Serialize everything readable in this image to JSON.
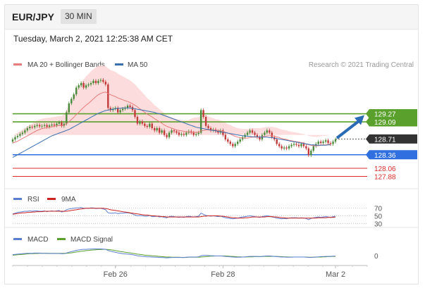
{
  "header": {
    "symbol": "EUR/JPY",
    "timeframe": "30 MIN"
  },
  "timestamp": "Tuesday, March 2, 2021 12:25:38 AM CET",
  "attribution": "Research © 2021 Trading Central",
  "colors": {
    "up_candle": "#4a8a3a",
    "down_candle": "#c23b3b",
    "ma20": "#e87c7c",
    "ma50": "#3a6fb0",
    "bollinger_fill": "#fbd6d6",
    "resistance": "#5aa02c",
    "support": "#2f6fe0",
    "lower_support": "#d92b2b",
    "current_price": "#333333",
    "arrow": "#2a6bb5",
    "rsi": "#5b7fd0",
    "rsi_ma": "#cc2222",
    "macd": "#5b7fd0",
    "macd_signal": "#5aa02c"
  },
  "chart_data": [
    {
      "type": "line",
      "panel": "price",
      "legend": [
        "MA 20 + Bollinger Bands",
        "MA 50"
      ],
      "ylim": [
        127.7,
        130.2
      ],
      "x_tick_labels": [
        "Feb 26",
        "Feb 28",
        "Mar 2"
      ],
      "levels": [
        {
          "label": "129.27",
          "value": 129.27,
          "kind": "resistance"
        },
        {
          "label": "129.09",
          "value": 129.09,
          "kind": "resistance"
        },
        {
          "label": "128.71",
          "value": 128.71,
          "kind": "current"
        },
        {
          "label": "128.36",
          "value": 128.36,
          "kind": "support"
        },
        {
          "label": "128.06",
          "value": 128.06,
          "kind": "lower"
        },
        {
          "label": "127.88",
          "value": 127.88,
          "kind": "lower"
        }
      ],
      "close": [
        128.7,
        128.75,
        128.78,
        128.82,
        128.85,
        128.9,
        128.95,
        128.98,
        128.97,
        129.0,
        129.02,
        128.99,
        129.0,
        129.02,
        128.98,
        129.01,
        129.03,
        129.01,
        129.05,
        129.08,
        129.0,
        129.05,
        129.3,
        129.5,
        129.6,
        129.7,
        129.85,
        129.9,
        129.95,
        129.85,
        129.9,
        129.92,
        129.95,
        130.0,
        129.95,
        130.0,
        130.02,
        129.98,
        129.92,
        129.4,
        129.35,
        129.38,
        129.4,
        129.3,
        129.35,
        129.38,
        129.4,
        129.45,
        129.42,
        129.35,
        129.2,
        129.05,
        129.1,
        129.05,
        129.0,
        128.98,
        129.05,
        128.95,
        128.9,
        128.95,
        128.85,
        128.9,
        128.8,
        128.75,
        128.85,
        128.9,
        128.88,
        128.85,
        128.8,
        128.82,
        128.8,
        128.85,
        128.88,
        128.85,
        128.8,
        128.82,
        128.85,
        129.35,
        129.2,
        129.0,
        128.95,
        128.9,
        128.92,
        128.88,
        128.85,
        128.9,
        128.8,
        128.7,
        128.65,
        128.6,
        128.55,
        128.6,
        128.65,
        128.7,
        128.75,
        128.8,
        128.85,
        128.9,
        128.85,
        128.8,
        128.75,
        128.7,
        128.8,
        128.85,
        128.9,
        128.85,
        128.75,
        128.7,
        128.6,
        128.55,
        128.5,
        128.52,
        128.5,
        128.55,
        128.58,
        128.6,
        128.58,
        128.55,
        128.6,
        128.55,
        128.5,
        128.35,
        128.45,
        128.55,
        128.6,
        128.65,
        128.62,
        128.65,
        128.68,
        128.62,
        128.6,
        128.65,
        128.7
      ],
      "ma20": [
        128.62,
        128.64,
        128.66,
        128.69,
        128.72,
        128.75,
        128.78,
        128.81,
        128.84,
        128.87,
        128.9,
        128.92,
        128.94,
        128.95,
        128.96,
        128.97,
        128.98,
        128.99,
        129.0,
        129.01,
        129.0,
        129.01,
        129.05,
        129.09,
        129.14,
        129.19,
        129.25,
        129.3,
        129.36,
        129.41,
        129.46,
        129.5,
        129.55,
        129.6,
        129.65,
        129.69,
        129.72,
        129.74,
        129.75,
        129.72,
        129.69,
        129.67,
        129.65,
        129.62,
        129.6,
        129.58,
        129.56,
        129.54,
        129.52,
        129.49,
        129.46,
        129.42,
        129.38,
        129.34,
        129.3,
        129.26,
        129.23,
        129.2,
        129.16,
        129.13,
        129.09,
        129.06,
        129.02,
        128.99,
        128.97,
        128.95,
        128.93,
        128.91,
        128.9,
        128.89,
        128.88,
        128.87,
        128.87,
        128.86,
        128.86,
        128.86,
        128.86,
        128.89,
        128.9,
        128.91,
        128.91,
        128.91,
        128.91,
        128.9,
        128.9,
        128.89,
        128.88,
        128.86,
        128.84,
        128.82,
        128.79,
        128.77,
        128.75,
        128.74,
        128.73,
        128.73,
        128.73,
        128.74,
        128.75,
        128.75,
        128.75,
        128.75,
        128.76,
        128.77,
        128.78,
        128.78,
        128.78,
        128.77,
        128.76,
        128.74,
        128.72,
        128.71,
        128.7,
        128.68,
        128.67,
        128.66,
        128.65,
        128.64,
        128.63,
        128.62,
        128.6,
        128.58,
        128.57,
        128.56,
        128.56,
        128.56,
        128.57,
        128.58,
        128.58,
        128.59,
        128.6
      ],
      "ma50": [
        128.3,
        128.33,
        128.36,
        128.39,
        128.42,
        128.45,
        128.48,
        128.51,
        128.54,
        128.57,
        128.6,
        128.63,
        128.66,
        128.69,
        128.72,
        128.75,
        128.78,
        128.8,
        128.82,
        128.84,
        128.86,
        128.88,
        128.9,
        128.92,
        128.95,
        128.98,
        129.01,
        129.04,
        129.07,
        129.1,
        129.13,
        129.16,
        129.19,
        129.22,
        129.25,
        129.28,
        129.3,
        129.32,
        129.34,
        129.35,
        129.36,
        129.37,
        129.38,
        129.39,
        129.39,
        129.4,
        129.4,
        129.4,
        129.4,
        129.39,
        129.38,
        129.37,
        129.36,
        129.35,
        129.34,
        129.33,
        129.32,
        129.31,
        129.3,
        129.28,
        129.27,
        129.25,
        129.23,
        129.21,
        129.19,
        129.17,
        129.15,
        129.13,
        129.11,
        129.09,
        129.07,
        129.05,
        129.03,
        129.01,
        128.99,
        128.97,
        128.96,
        128.95,
        128.94,
        128.93,
        128.92,
        128.91,
        128.9,
        128.89,
        128.88,
        128.87,
        128.86,
        128.85,
        128.84,
        128.83,
        128.82,
        128.81,
        128.8,
        128.79,
        128.78,
        128.78,
        128.77,
        128.77,
        128.76,
        128.76,
        128.76,
        128.75,
        128.75,
        128.75,
        128.75,
        128.74,
        128.74,
        128.73,
        128.72,
        128.71,
        128.7,
        128.69,
        128.68,
        128.67,
        128.66,
        128.65,
        128.64,
        128.63,
        128.62,
        128.61,
        128.6,
        128.59,
        128.58,
        128.58,
        128.57,
        128.57,
        128.57,
        128.57,
        128.57,
        128.58,
        128.58
      ],
      "boll_width": [
        0.18,
        0.18,
        0.19,
        0.19,
        0.2,
        0.2,
        0.21,
        0.21,
        0.21,
        0.22,
        0.22,
        0.22,
        0.22,
        0.22,
        0.22,
        0.21,
        0.21,
        0.21,
        0.21,
        0.21,
        0.22,
        0.24,
        0.3,
        0.36,
        0.42,
        0.47,
        0.52,
        0.56,
        0.6,
        0.62,
        0.64,
        0.65,
        0.66,
        0.66,
        0.65,
        0.64,
        0.62,
        0.6,
        0.58,
        0.56,
        0.55,
        0.55,
        0.55,
        0.54,
        0.53,
        0.52,
        0.51,
        0.5,
        0.49,
        0.48,
        0.46,
        0.44,
        0.42,
        0.4,
        0.38,
        0.36,
        0.34,
        0.32,
        0.3,
        0.29,
        0.28,
        0.27,
        0.26,
        0.25,
        0.24,
        0.24,
        0.24,
        0.24,
        0.24,
        0.24,
        0.24,
        0.25,
        0.26,
        0.3,
        0.32,
        0.33,
        0.33,
        0.34,
        0.33,
        0.32,
        0.3,
        0.28,
        0.26,
        0.25,
        0.24,
        0.23,
        0.22,
        0.21,
        0.2,
        0.2,
        0.2,
        0.2,
        0.2,
        0.2,
        0.2,
        0.2,
        0.2,
        0.2,
        0.2,
        0.2,
        0.2,
        0.2,
        0.2,
        0.2,
        0.2,
        0.2,
        0.2,
        0.2,
        0.2,
        0.2,
        0.2,
        0.2,
        0.2,
        0.2,
        0.2,
        0.2,
        0.2,
        0.2,
        0.2,
        0.2,
        0.2,
        0.2,
        0.2,
        0.2,
        0.2,
        0.2,
        0.2,
        0.2,
        0.2,
        0.2,
        0.2
      ]
    },
    {
      "type": "line",
      "panel": "rsi",
      "legend": [
        "RSI",
        "9MA"
      ],
      "ylim": [
        25,
        75
      ],
      "tick_labels": [
        "70",
        "50",
        "30"
      ],
      "rsi": [
        55,
        57,
        59,
        60,
        61,
        62,
        62,
        63,
        62,
        63,
        63,
        62,
        62,
        63,
        61,
        62,
        63,
        62,
        63,
        64,
        60,
        62,
        66,
        68,
        69,
        70,
        71,
        71,
        72,
        70,
        70,
        70,
        71,
        71,
        69,
        70,
        70,
        68,
        66,
        58,
        57,
        57,
        58,
        56,
        57,
        57,
        58,
        58,
        57,
        55,
        52,
        50,
        51,
        50,
        49,
        49,
        51,
        48,
        48,
        49,
        47,
        48,
        46,
        45,
        48,
        49,
        48,
        47,
        46,
        47,
        46,
        48,
        49,
        48,
        47,
        48,
        49,
        57,
        54,
        51,
        50,
        49,
        50,
        49,
        48,
        49,
        47,
        45,
        44,
        43,
        42,
        43,
        44,
        46,
        47,
        48,
        49,
        50,
        49,
        48,
        47,
        46,
        48,
        49,
        50,
        49,
        47,
        46,
        44,
        43,
        42,
        43,
        42,
        44,
        45,
        45,
        45,
        44,
        45,
        44,
        43,
        40,
        43,
        45,
        46,
        47,
        46,
        47,
        48,
        47,
        46,
        48,
        49
      ],
      "ma9": [
        54,
        55,
        56,
        57,
        58,
        58,
        59,
        59,
        60,
        60,
        61,
        61,
        61,
        62,
        62,
        62,
        62,
        62,
        62,
        62,
        62,
        62,
        62,
        63,
        64,
        65,
        66,
        67,
        68,
        69,
        70,
        70,
        70,
        70,
        70,
        70,
        70,
        70,
        69,
        68,
        66,
        65,
        64,
        63,
        62,
        61,
        60,
        59,
        58,
        57,
        56,
        55,
        54,
        53,
        52,
        52,
        51,
        50,
        50,
        49,
        49,
        48,
        48,
        47,
        47,
        47,
        47,
        47,
        47,
        47,
        47,
        47,
        47,
        47,
        47,
        47,
        47,
        48,
        49,
        49,
        50,
        50,
        50,
        50,
        50,
        49,
        49,
        48,
        47,
        46,
        45,
        45,
        44,
        44,
        44,
        45,
        45,
        46,
        47,
        47,
        47,
        47,
        47,
        47,
        48,
        48,
        48,
        47,
        47,
        46,
        45,
        45,
        44,
        44,
        44,
        44,
        44,
        44,
        44,
        44,
        44,
        44,
        44,
        44,
        44,
        45,
        45,
        45,
        45,
        46,
        46,
        46,
        47
      ],
      "points_dotted": true
    },
    {
      "type": "line",
      "panel": "macd",
      "legend": [
        "MACD",
        "MACD Signal"
      ],
      "ylim": [
        -0.4,
        0.45
      ],
      "tick_labels": [
        "0"
      ],
      "macd": [
        0.05,
        0.07,
        0.08,
        0.09,
        0.1,
        0.11,
        0.12,
        0.12,
        0.12,
        0.13,
        0.13,
        0.13,
        0.12,
        0.12,
        0.12,
        0.11,
        0.11,
        0.11,
        0.11,
        0.11,
        0.1,
        0.1,
        0.13,
        0.17,
        0.2,
        0.23,
        0.26,
        0.28,
        0.3,
        0.31,
        0.31,
        0.32,
        0.32,
        0.33,
        0.33,
        0.33,
        0.33,
        0.32,
        0.31,
        0.26,
        0.22,
        0.19,
        0.17,
        0.14,
        0.12,
        0.1,
        0.09,
        0.08,
        0.07,
        0.05,
        0.03,
        0.0,
        -0.01,
        -0.03,
        -0.04,
        -0.05,
        -0.05,
        -0.06,
        -0.07,
        -0.07,
        -0.08,
        -0.08,
        -0.09,
        -0.1,
        -0.09,
        -0.08,
        -0.08,
        -0.08,
        -0.08,
        -0.08,
        -0.08,
        -0.07,
        -0.06,
        -0.06,
        -0.06,
        -0.06,
        -0.05,
        0.0,
        0.02,
        0.02,
        0.01,
        0.0,
        0.0,
        -0.01,
        -0.01,
        -0.01,
        -0.02,
        -0.03,
        -0.04,
        -0.05,
        -0.06,
        -0.07,
        -0.07,
        -0.07,
        -0.06,
        -0.05,
        -0.04,
        -0.03,
        -0.03,
        -0.03,
        -0.03,
        -0.04,
        -0.03,
        -0.02,
        -0.01,
        -0.01,
        -0.02,
        -0.03,
        -0.04,
        -0.05,
        -0.06,
        -0.06,
        -0.07,
        -0.07,
        -0.07,
        -0.06,
        -0.06,
        -0.06,
        -0.06,
        -0.06,
        -0.07,
        -0.08,
        -0.08,
        -0.07,
        -0.06,
        -0.05,
        -0.04,
        -0.04,
        -0.03,
        -0.03,
        -0.03,
        -0.02,
        -0.02
      ],
      "signal": [
        0.03,
        0.04,
        0.05,
        0.06,
        0.07,
        0.08,
        0.09,
        0.1,
        0.1,
        0.11,
        0.11,
        0.12,
        0.12,
        0.12,
        0.12,
        0.12,
        0.12,
        0.12,
        0.12,
        0.12,
        0.12,
        0.12,
        0.12,
        0.13,
        0.14,
        0.16,
        0.18,
        0.2,
        0.22,
        0.23,
        0.25,
        0.26,
        0.27,
        0.28,
        0.29,
        0.3,
        0.3,
        0.31,
        0.31,
        0.3,
        0.29,
        0.27,
        0.25,
        0.23,
        0.21,
        0.19,
        0.17,
        0.15,
        0.14,
        0.12,
        0.1,
        0.08,
        0.07,
        0.05,
        0.03,
        0.02,
        0.01,
        0.0,
        -0.01,
        -0.02,
        -0.03,
        -0.04,
        -0.05,
        -0.06,
        -0.06,
        -0.07,
        -0.07,
        -0.07,
        -0.07,
        -0.08,
        -0.08,
        -0.08,
        -0.07,
        -0.07,
        -0.07,
        -0.07,
        -0.07,
        -0.06,
        -0.05,
        -0.04,
        -0.03,
        -0.02,
        -0.02,
        -0.01,
        -0.01,
        -0.01,
        -0.01,
        -0.01,
        -0.02,
        -0.03,
        -0.03,
        -0.04,
        -0.05,
        -0.05,
        -0.06,
        -0.06,
        -0.05,
        -0.05,
        -0.05,
        -0.04,
        -0.04,
        -0.04,
        -0.04,
        -0.03,
        -0.03,
        -0.03,
        -0.03,
        -0.03,
        -0.03,
        -0.04,
        -0.04,
        -0.05,
        -0.05,
        -0.06,
        -0.06,
        -0.06,
        -0.06,
        -0.06,
        -0.06,
        -0.06,
        -0.06,
        -0.07,
        -0.07,
        -0.07,
        -0.07,
        -0.06,
        -0.06,
        -0.05,
        -0.05,
        -0.04,
        -0.04,
        -0.03,
        -0.03
      ]
    }
  ]
}
